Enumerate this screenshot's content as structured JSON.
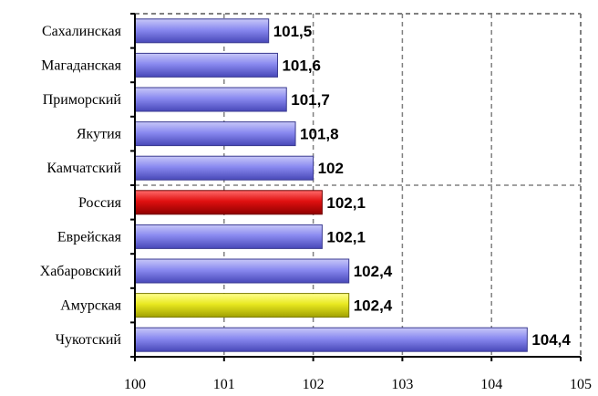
{
  "chart_data": {
    "type": "bar",
    "orientation": "horizontal",
    "categories": [
      "Сахалинская",
      "Магаданская",
      "Приморский",
      "Якутия",
      "Камчатский",
      "Россия",
      "Еврейская",
      "Хабаровский",
      "Амурская",
      "Чукотский"
    ],
    "values": [
      101.5,
      101.6,
      101.7,
      101.8,
      102,
      102.1,
      102.1,
      102.4,
      102.4,
      104.4
    ],
    "data_labels": [
      "101,5",
      "101,6",
      "101,7",
      "101,8",
      "102",
      "102,1",
      "102,1",
      "102,4",
      "102,4",
      "104,4"
    ],
    "x_ticks": [
      "100",
      "101",
      "102",
      "103",
      "104",
      "105"
    ],
    "xlim": [
      100,
      105
    ],
    "title": "",
    "xlabel": "",
    "ylabel": "",
    "grid": true,
    "legend": "none",
    "colors": {
      "default": "#8484e8",
      "Россия": "#e01010",
      "Амурская": "#e0e010"
    }
  }
}
